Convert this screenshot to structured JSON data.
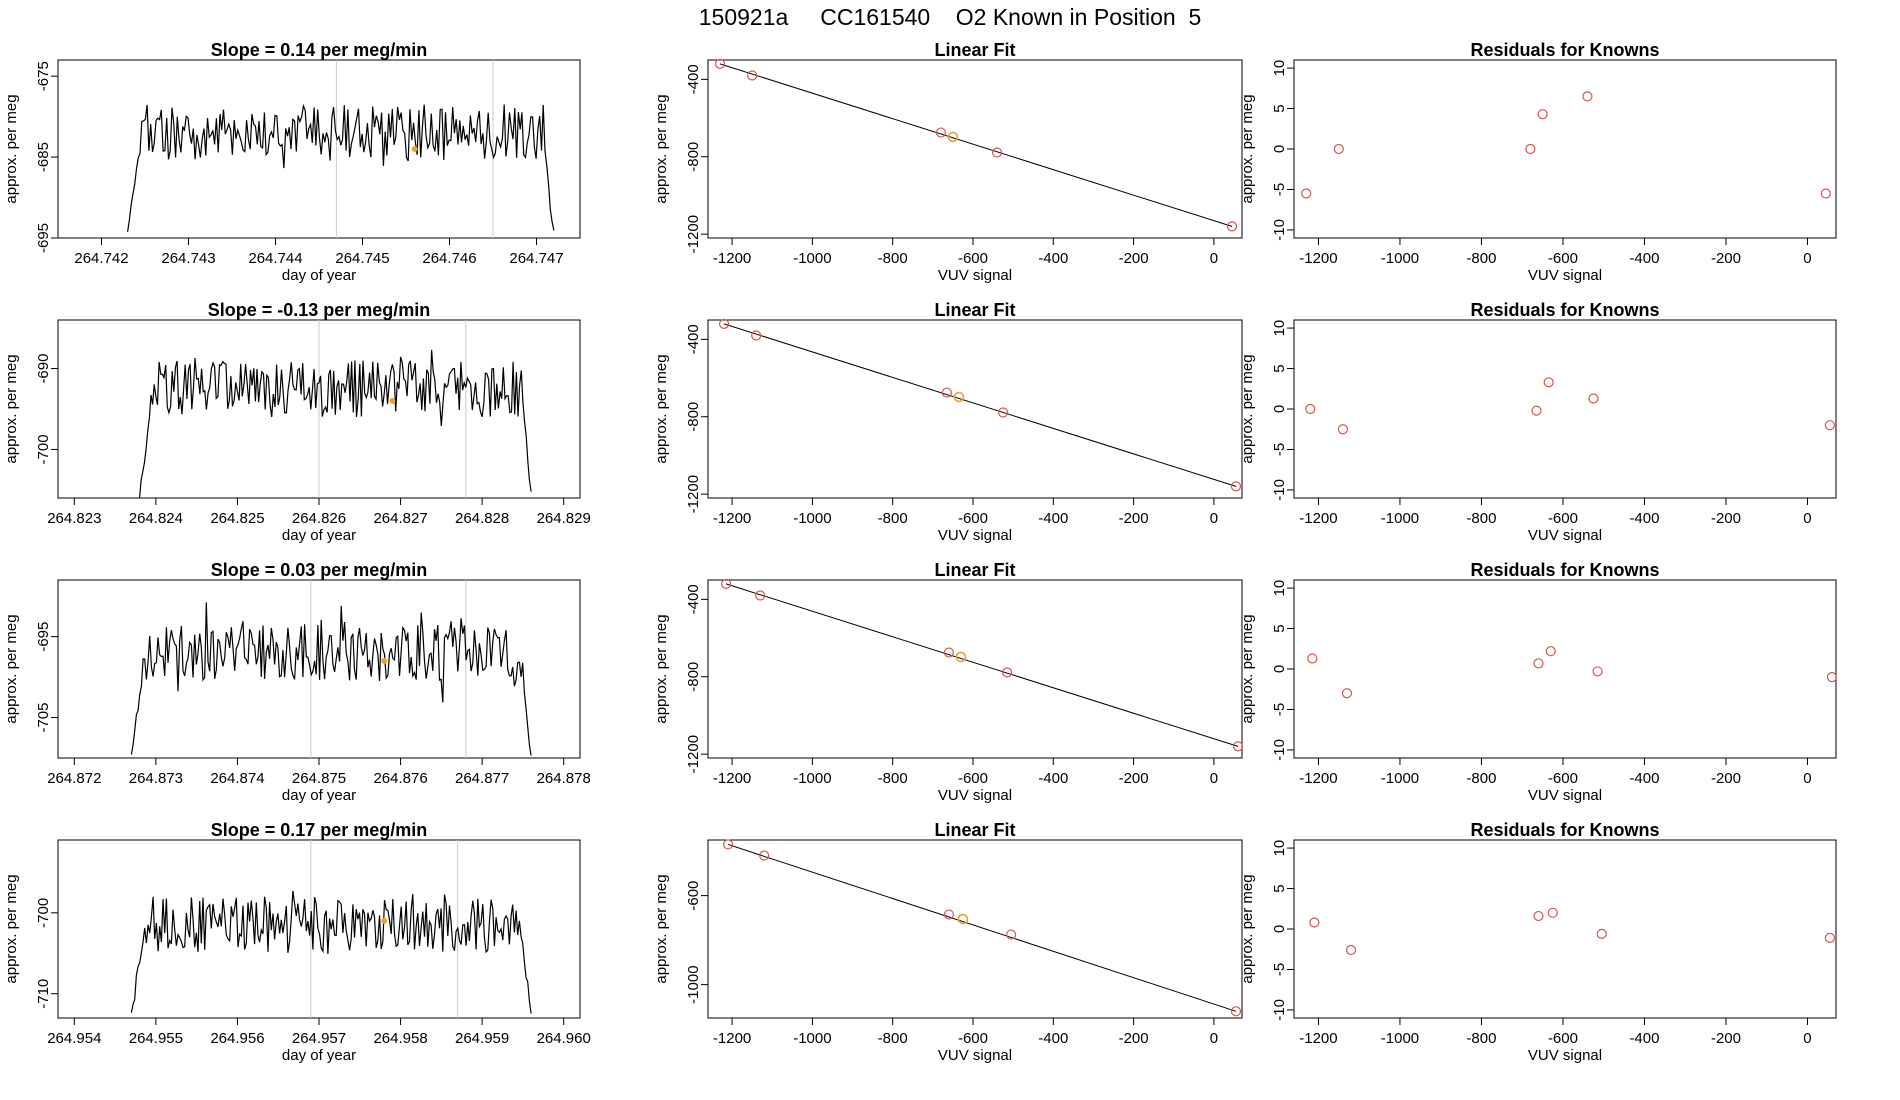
{
  "page_title": "150921a     CC161540    O2 Known in Position  5",
  "colors": {
    "trace": "#000000",
    "point": "#d9534f",
    "highlight": "#f0a030",
    "vline": "#c8c8c8"
  },
  "chart_data": [
    {
      "type": "line",
      "panel": "timeseries",
      "title": "Slope =  0.14  per meg/min",
      "xlabel": "day of year",
      "ylabel": "approx. per meg",
      "xlim": [
        264.7415,
        264.7475
      ],
      "ylim": [
        -695,
        -673
      ],
      "xticks": [
        "264.742",
        "264.743",
        "264.744",
        "264.745",
        "264.746",
        "264.747"
      ],
      "yticks": [
        "-675",
        "-685",
        "-695"
      ],
      "vlines": [
        264.7447,
        264.7465
      ],
      "highlight_point": {
        "x": 264.7456,
        "y": -684
      },
      "series_range": {
        "x_start": 264.7423,
        "x_end": 264.7472,
        "center": -682,
        "amplitude": 3.5
      }
    },
    {
      "type": "scatter",
      "panel": "fit",
      "title": "Linear Fit",
      "xlabel": "VUV signal",
      "ylabel": "approx. per meg",
      "xlim": [
        -1260,
        70
      ],
      "ylim": [
        -1220,
        -300
      ],
      "xticks": [
        "-1200",
        "-1000",
        "-800",
        "-600",
        "-400",
        "-200",
        "0"
      ],
      "yticks": [
        "-400",
        "-800",
        "-1200"
      ],
      "x": [
        -1230,
        -1150,
        -680,
        -650,
        -540,
        45
      ],
      "y": [
        -320,
        -380,
        -675,
        -698,
        -778,
        -1160
      ],
      "highlight_point": {
        "x": -650,
        "y": -698
      },
      "line": [
        [
          -1230,
          -320
        ],
        [
          45,
          -1160
        ]
      ]
    },
    {
      "type": "scatter",
      "panel": "residuals",
      "title": "Residuals for Knowns",
      "xlabel": "VUV signal",
      "ylabel": "approx. per meg",
      "xlim": [
        -1260,
        70
      ],
      "ylim": [
        -11,
        11
      ],
      "xticks": [
        "-1200",
        "-1000",
        "-800",
        "-600",
        "-400",
        "-200",
        "0"
      ],
      "yticks": [
        "10",
        "5",
        "0",
        "-5",
        "-10"
      ],
      "x": [
        -1230,
        -1150,
        -680,
        -650,
        -540,
        45
      ],
      "y": [
        -5.5,
        0,
        0,
        4.3,
        6.5,
        -5.5
      ]
    },
    {
      "type": "line",
      "panel": "timeseries",
      "title": "Slope =  -0.13  per meg/min",
      "xlabel": "day of year",
      "ylabel": "approx. per meg",
      "xlim": [
        264.8228,
        264.8292
      ],
      "ylim": [
        -706,
        -684
      ],
      "xticks": [
        "264.823",
        "264.824",
        "264.825",
        "264.826",
        "264.827",
        "264.828",
        "264.829"
      ],
      "yticks": [
        "-690",
        "-700"
      ],
      "vlines": [
        264.826,
        264.8278
      ],
      "highlight_point": {
        "x": 264.8269,
        "y": -694
      },
      "series_range": {
        "x_start": 264.8238,
        "x_end": 264.8286,
        "center": -692.5,
        "amplitude": 3.5
      }
    },
    {
      "type": "scatter",
      "panel": "fit",
      "title": "Linear Fit",
      "xlabel": "VUV signal",
      "ylabel": "approx. per meg",
      "xlim": [
        -1260,
        70
      ],
      "ylim": [
        -1220,
        -300
      ],
      "xticks": [
        "-1200",
        "-1000",
        "-800",
        "-600",
        "-400",
        "-200",
        "0"
      ],
      "yticks": [
        "-400",
        "-800",
        "-1200"
      ],
      "x": [
        -1220,
        -1140,
        -665,
        -635,
        -525,
        55
      ],
      "y": [
        -320,
        -380,
        -675,
        -698,
        -778,
        -1160
      ],
      "highlight_point": {
        "x": -635,
        "y": -698
      },
      "line": [
        [
          -1220,
          -320
        ],
        [
          55,
          -1160
        ]
      ]
    },
    {
      "type": "scatter",
      "panel": "residuals",
      "title": "Residuals for Knowns",
      "xlabel": "VUV signal",
      "ylabel": "approx. per meg",
      "xlim": [
        -1260,
        70
      ],
      "ylim": [
        -11,
        11
      ],
      "xticks": [
        "-1200",
        "-1000",
        "-800",
        "-600",
        "-400",
        "-200",
        "0"
      ],
      "yticks": [
        "10",
        "5",
        "0",
        "-5",
        "-10"
      ],
      "x": [
        -1220,
        -1140,
        -665,
        -635,
        -525,
        55
      ],
      "y": [
        0,
        -2.5,
        -0.2,
        3.3,
        1.3,
        -2
      ]
    },
    {
      "type": "line",
      "panel": "timeseries",
      "title": "Slope =  0.03  per meg/min",
      "xlabel": "day of year",
      "ylabel": "approx. per meg",
      "xlim": [
        264.8718,
        264.8782
      ],
      "ylim": [
        -710,
        -688
      ],
      "xticks": [
        "264.872",
        "264.873",
        "264.874",
        "264.875",
        "264.876",
        "264.877",
        "264.878"
      ],
      "yticks": [
        "-695",
        "-705"
      ],
      "vlines": [
        264.8749,
        264.8768
      ],
      "highlight_point": {
        "x": 264.8758,
        "y": -698
      },
      "series_range": {
        "x_start": 264.8727,
        "x_end": 264.8776,
        "center": -697,
        "amplitude": 3.5
      }
    },
    {
      "type": "scatter",
      "panel": "fit",
      "title": "Linear Fit",
      "xlabel": "VUV signal",
      "ylabel": "approx. per meg",
      "xlim": [
        -1260,
        70
      ],
      "ylim": [
        -1220,
        -300
      ],
      "xticks": [
        "-1200",
        "-1000",
        "-800",
        "-600",
        "-400",
        "-200",
        "0"
      ],
      "yticks": [
        "-400",
        "-800",
        "-1200"
      ],
      "x": [
        -1215,
        -1130,
        -660,
        -630,
        -515,
        60
      ],
      "y": [
        -320,
        -380,
        -675,
        -698,
        -778,
        -1160
      ],
      "highlight_point": {
        "x": -630,
        "y": -698
      },
      "line": [
        [
          -1215,
          -320
        ],
        [
          60,
          -1160
        ]
      ]
    },
    {
      "type": "scatter",
      "panel": "residuals",
      "title": "Residuals for Knowns",
      "xlabel": "VUV signal",
      "ylabel": "approx. per meg",
      "xlim": [
        -1260,
        70
      ],
      "ylim": [
        -11,
        11
      ],
      "xticks": [
        "-1200",
        "-1000",
        "-800",
        "-600",
        "-400",
        "-200",
        "0"
      ],
      "yticks": [
        "10",
        "5",
        "0",
        "-5",
        "-10"
      ],
      "x": [
        -1215,
        -1130,
        -660,
        -630,
        -515,
        60
      ],
      "y": [
        1.3,
        -3,
        0.7,
        2.2,
        -0.3,
        -1
      ]
    },
    {
      "type": "line",
      "panel": "timeseries",
      "title": "Slope =  0.17  per meg/min",
      "xlabel": "day of year",
      "ylabel": "approx. per meg",
      "xlim": [
        264.9538,
        264.9602
      ],
      "ylim": [
        -713,
        -691
      ],
      "xticks": [
        "264.954",
        "264.955",
        "264.956",
        "264.957",
        "264.958",
        "264.959",
        "264.960"
      ],
      "yticks": [
        "-700",
        "-710"
      ],
      "vlines": [
        264.9569,
        264.9587
      ],
      "highlight_point": {
        "x": 264.9578,
        "y": -701
      },
      "series_range": {
        "x_start": 264.9547,
        "x_end": 264.9596,
        "center": -701.5,
        "amplitude": 3.5
      }
    },
    {
      "type": "scatter",
      "panel": "fit",
      "title": "Linear Fit",
      "xlabel": "VUV signal",
      "ylabel": "approx. per meg",
      "xlim": [
        -1260,
        70
      ],
      "ylim": [
        -1150,
        -350
      ],
      "xticks": [
        "-1200",
        "-1000",
        "-800",
        "-600",
        "-400",
        "-200",
        "0"
      ],
      "yticks": [
        "-600",
        "-1000"
      ],
      "x": [
        -1210,
        -1120,
        -660,
        -625,
        -505,
        55
      ],
      "y": [
        -370,
        -420,
        -685,
        -705,
        -775,
        -1120
      ],
      "highlight_point": {
        "x": -625,
        "y": -705
      },
      "line": [
        [
          -1210,
          -370
        ],
        [
          55,
          -1120
        ]
      ]
    },
    {
      "type": "scatter",
      "panel": "residuals",
      "title": "Residuals for Knowns",
      "xlabel": "VUV signal",
      "ylabel": "approx. per meg",
      "xlim": [
        -1260,
        70
      ],
      "ylim": [
        -11,
        11
      ],
      "xticks": [
        "-1200",
        "-1000",
        "-800",
        "-600",
        "-400",
        "-200",
        "0"
      ],
      "yticks": [
        "10",
        "5",
        "0",
        "-5",
        "-10"
      ],
      "x": [
        -1210,
        -1120,
        -660,
        -625,
        -505,
        55
      ],
      "y": [
        0.8,
        -2.6,
        1.6,
        2,
        -0.6,
        -1.1
      ]
    }
  ]
}
